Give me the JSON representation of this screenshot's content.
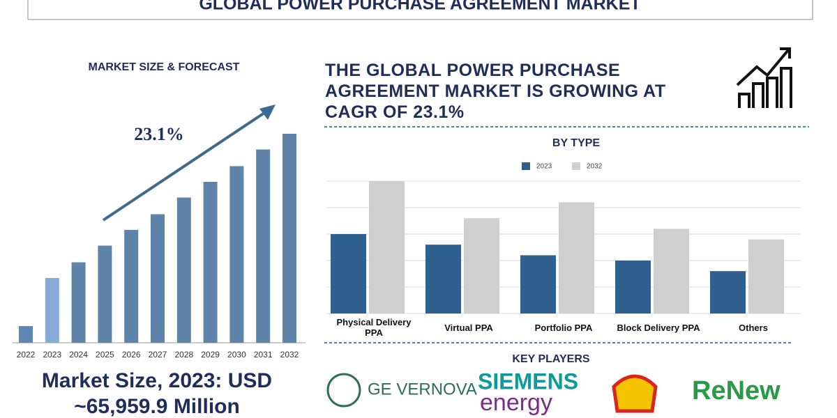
{
  "title": "GLOBAL POWER PURCHASE AGREEMENT MARKET",
  "headline": "THE GLOBAL POWER PURCHASE AGREEMENT MARKET IS GROWING AT CAGR OF 23.1%",
  "market_size": "Market Size, 2023: USD ~65,959.9 Million",
  "key_players": {
    "title": "KEY PLAYERS",
    "names": [
      "GE VERNOVA",
      "SIEMENS",
      "energy",
      "ReNew"
    ]
  },
  "chart_data": [
    {
      "type": "bar",
      "title": "MARKET SIZE & FORECAST",
      "annotation": "23.1%",
      "categories": [
        "2022",
        "2023",
        "2024",
        "2025",
        "2026",
        "2027",
        "2028",
        "2029",
        "2030",
        "2031",
        "2032"
      ],
      "values": [
        17000,
        66000,
        82000,
        99000,
        115000,
        131000,
        148000,
        164000,
        180000,
        197000,
        213000
      ],
      "colors": [
        "#5f87b3",
        "#86abd6",
        "#5f84a9",
        "#5f84a9",
        "#5f84a9",
        "#5f84a9",
        "#5f84a9",
        "#5f84a9",
        "#5f84a9",
        "#5f84a9",
        "#5f84a9"
      ],
      "ylim": [
        0,
        213000
      ]
    },
    {
      "type": "grouped-bar",
      "title": "BY TYPE",
      "categories": [
        "Physical Delivery PPA",
        "Virtual PPA",
        "Portfolio PPA",
        "Block Delivery PPA",
        "Others"
      ],
      "series": [
        {
          "name": "2023",
          "color": "#2e5f8e",
          "values": [
            3.0,
            2.6,
            2.2,
            2.0,
            1.6
          ]
        },
        {
          "name": "2032",
          "color": "#cfcfcf",
          "values": [
            5.0,
            3.6,
            4.2,
            3.2,
            2.8
          ]
        }
      ],
      "ylim": [
        0,
        5
      ],
      "yticks": [
        0,
        1,
        2,
        3,
        4,
        5
      ],
      "grid": true
    }
  ]
}
